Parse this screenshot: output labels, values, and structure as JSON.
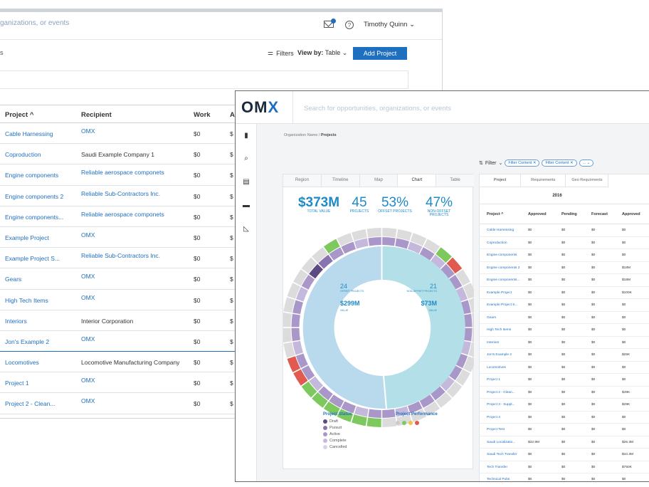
{
  "back": {
    "search_placeholder": "ganizations, or events",
    "user_name": "Timothy Quinn",
    "section_label": "s",
    "filters_label": "Filters",
    "view_by_label": "View by:",
    "view_by_value": "Table",
    "add_project_label": "Add Project",
    "columns": [
      "Project ^",
      "Recipient",
      "Work",
      "A"
    ],
    "rows": [
      {
        "project": "Cable Harnessing",
        "recipient": "OMX",
        "link": true,
        "work": "$0",
        "a": "$"
      },
      {
        "project": "Coproduction",
        "recipient": "Saudi Example Company 1",
        "link": false,
        "work": "$0",
        "a": "$"
      },
      {
        "project": "Engine components",
        "recipient": "Reliable aerospace componets",
        "link": true,
        "work": "$0",
        "a": "$"
      },
      {
        "project": "Engine components 2",
        "recipient": "Reliable Sub-Contractors Inc.",
        "link": true,
        "work": "$0",
        "a": "$"
      },
      {
        "project": "Engine components...",
        "recipient": "Reliable aerospace componets",
        "link": true,
        "work": "$0",
        "a": "$"
      },
      {
        "project": "Example Project",
        "recipient": "OMX",
        "link": true,
        "work": "$0",
        "a": "$"
      },
      {
        "project": "Example Project S...",
        "recipient": "Reliable Sub-Contractors Inc.",
        "link": true,
        "work": "$0",
        "a": "$"
      },
      {
        "project": "Gears",
        "recipient": "OMX",
        "link": true,
        "work": "$0",
        "a": "$"
      },
      {
        "project": "High Tech Items",
        "recipient": "OMX",
        "link": true,
        "work": "$0",
        "a": "$"
      },
      {
        "project": "Interiors",
        "recipient": "Interior Corporation",
        "link": false,
        "work": "$0",
        "a": "$"
      },
      {
        "project": "Jon's Example 2",
        "recipient": "OMX",
        "link": true,
        "work": "$0",
        "a": "$"
      },
      {
        "project": "Locomotives",
        "recipient": "Locomotive Manufacturing Company",
        "link": false,
        "work": "$0",
        "a": "$"
      },
      {
        "project": "Project 1",
        "recipient": "OMX",
        "link": true,
        "work": "$0",
        "a": "$"
      },
      {
        "project": "Project 2 - Clean...",
        "recipient": "OMX",
        "link": true,
        "work": "$0",
        "a": "$"
      }
    ]
  },
  "front": {
    "logo_text": "OM",
    "logo_x": "X",
    "search_placeholder": "Search for opportunities, organizations, or events",
    "breadcrumb_org": "Organization Name /",
    "breadcrumb_page": "Projects",
    "filter_label": "Filter",
    "chips": [
      "Filter Content ✕",
      "Filter Content ✕",
      "... ⌄"
    ],
    "left_tabs": [
      "Region",
      "Timeline",
      "Map",
      "Chart",
      "Table"
    ],
    "active_left_tab": "Chart",
    "stats": [
      {
        "value": "$373M",
        "label": "TOTAL VALUE"
      },
      {
        "value": "45",
        "label": "PROJECTS"
      },
      {
        "value": "53%",
        "label": "OFFSET PROJECTS"
      },
      {
        "value": "47%",
        "label": "NON-OFFSET PROJECTS"
      }
    ],
    "donut": {
      "offset_count": "24",
      "offset_label": "OFFSET PROJECTS",
      "offset_value": "$299M",
      "offset_value_label": "VALUE",
      "non_offset_count": "21",
      "non_offset_label": "NON-OFFSET PROJECTS",
      "non_offset_value": "$73M",
      "non_offset_value_label": "VALUE"
    },
    "project_status_title": "Project Status",
    "project_status": [
      {
        "label": "Draft",
        "color": "#5d4a80"
      },
      {
        "label": "Pursuit",
        "color": "#8a74b0"
      },
      {
        "label": "Active",
        "color": "#a897c8"
      },
      {
        "label": "Complete",
        "color": "#c4b9dc"
      },
      {
        "label": "Cancelled",
        "color": "#d9d2e8"
      }
    ],
    "project_performance_title": "Project Performance",
    "performance_colors": [
      "#cccccc",
      "#7dc95e",
      "#f0c24a",
      "#e05a50"
    ],
    "right_tabs": [
      "Project",
      "Requirements",
      "Geo Requirments"
    ],
    "year": "2016",
    "right_columns": [
      "Project ^",
      "Approved",
      "Pending",
      "Forecast",
      "Approved"
    ],
    "right_rows": [
      [
        "Cable Harnessing",
        "$0",
        "$0",
        "$0",
        "$0"
      ],
      [
        "Coproduction",
        "$0",
        "$0",
        "$0",
        "$0"
      ],
      [
        "Engine components",
        "$0",
        "$0",
        "$0",
        "$0"
      ],
      [
        "Engine components 2",
        "$0",
        "$0",
        "$0",
        "$18M"
      ],
      [
        "Engine components...",
        "$0",
        "$0",
        "$0",
        "$18M"
      ],
      [
        "Example Project",
        "$0",
        "$0",
        "$0",
        "$100K"
      ],
      [
        "Example Project S...",
        "$0",
        "$0",
        "$0",
        "$0"
      ],
      [
        "Gears",
        "$0",
        "$0",
        "$0",
        "$0"
      ],
      [
        "High Tech Items",
        "$0",
        "$0",
        "$0",
        "$0"
      ],
      [
        "Interiors",
        "$0",
        "$0",
        "$0",
        "$0"
      ],
      [
        "Jon's Example 2",
        "$0",
        "$0",
        "$0",
        "$25K"
      ],
      [
        "Locomotives",
        "$0",
        "$0",
        "$0",
        "$0"
      ],
      [
        "Project 1",
        "$0",
        "$0",
        "$0",
        "$0"
      ],
      [
        "Project 2 - Clean...",
        "$0",
        "$0",
        "$0",
        "$49K"
      ],
      [
        "Project 3 - Suppl...",
        "$0",
        "$0",
        "$0",
        "$29K"
      ],
      [
        "Project 4",
        "$0",
        "$0",
        "$0",
        "$0"
      ],
      [
        "Project Test",
        "$0",
        "$0",
        "$0",
        "$0"
      ],
      [
        "Saudi Localizatio...",
        "$32.9M",
        "$0",
        "$0",
        "$26.3M"
      ],
      [
        "Saudi Tech Transfer",
        "$0",
        "$0",
        "$0",
        "$10.3M"
      ],
      [
        "Tech Transfer",
        "$0",
        "$0",
        "$0",
        "$750K"
      ],
      [
        "Technical Pubs",
        "$0",
        "$0",
        "$0",
        "$0"
      ]
    ]
  }
}
